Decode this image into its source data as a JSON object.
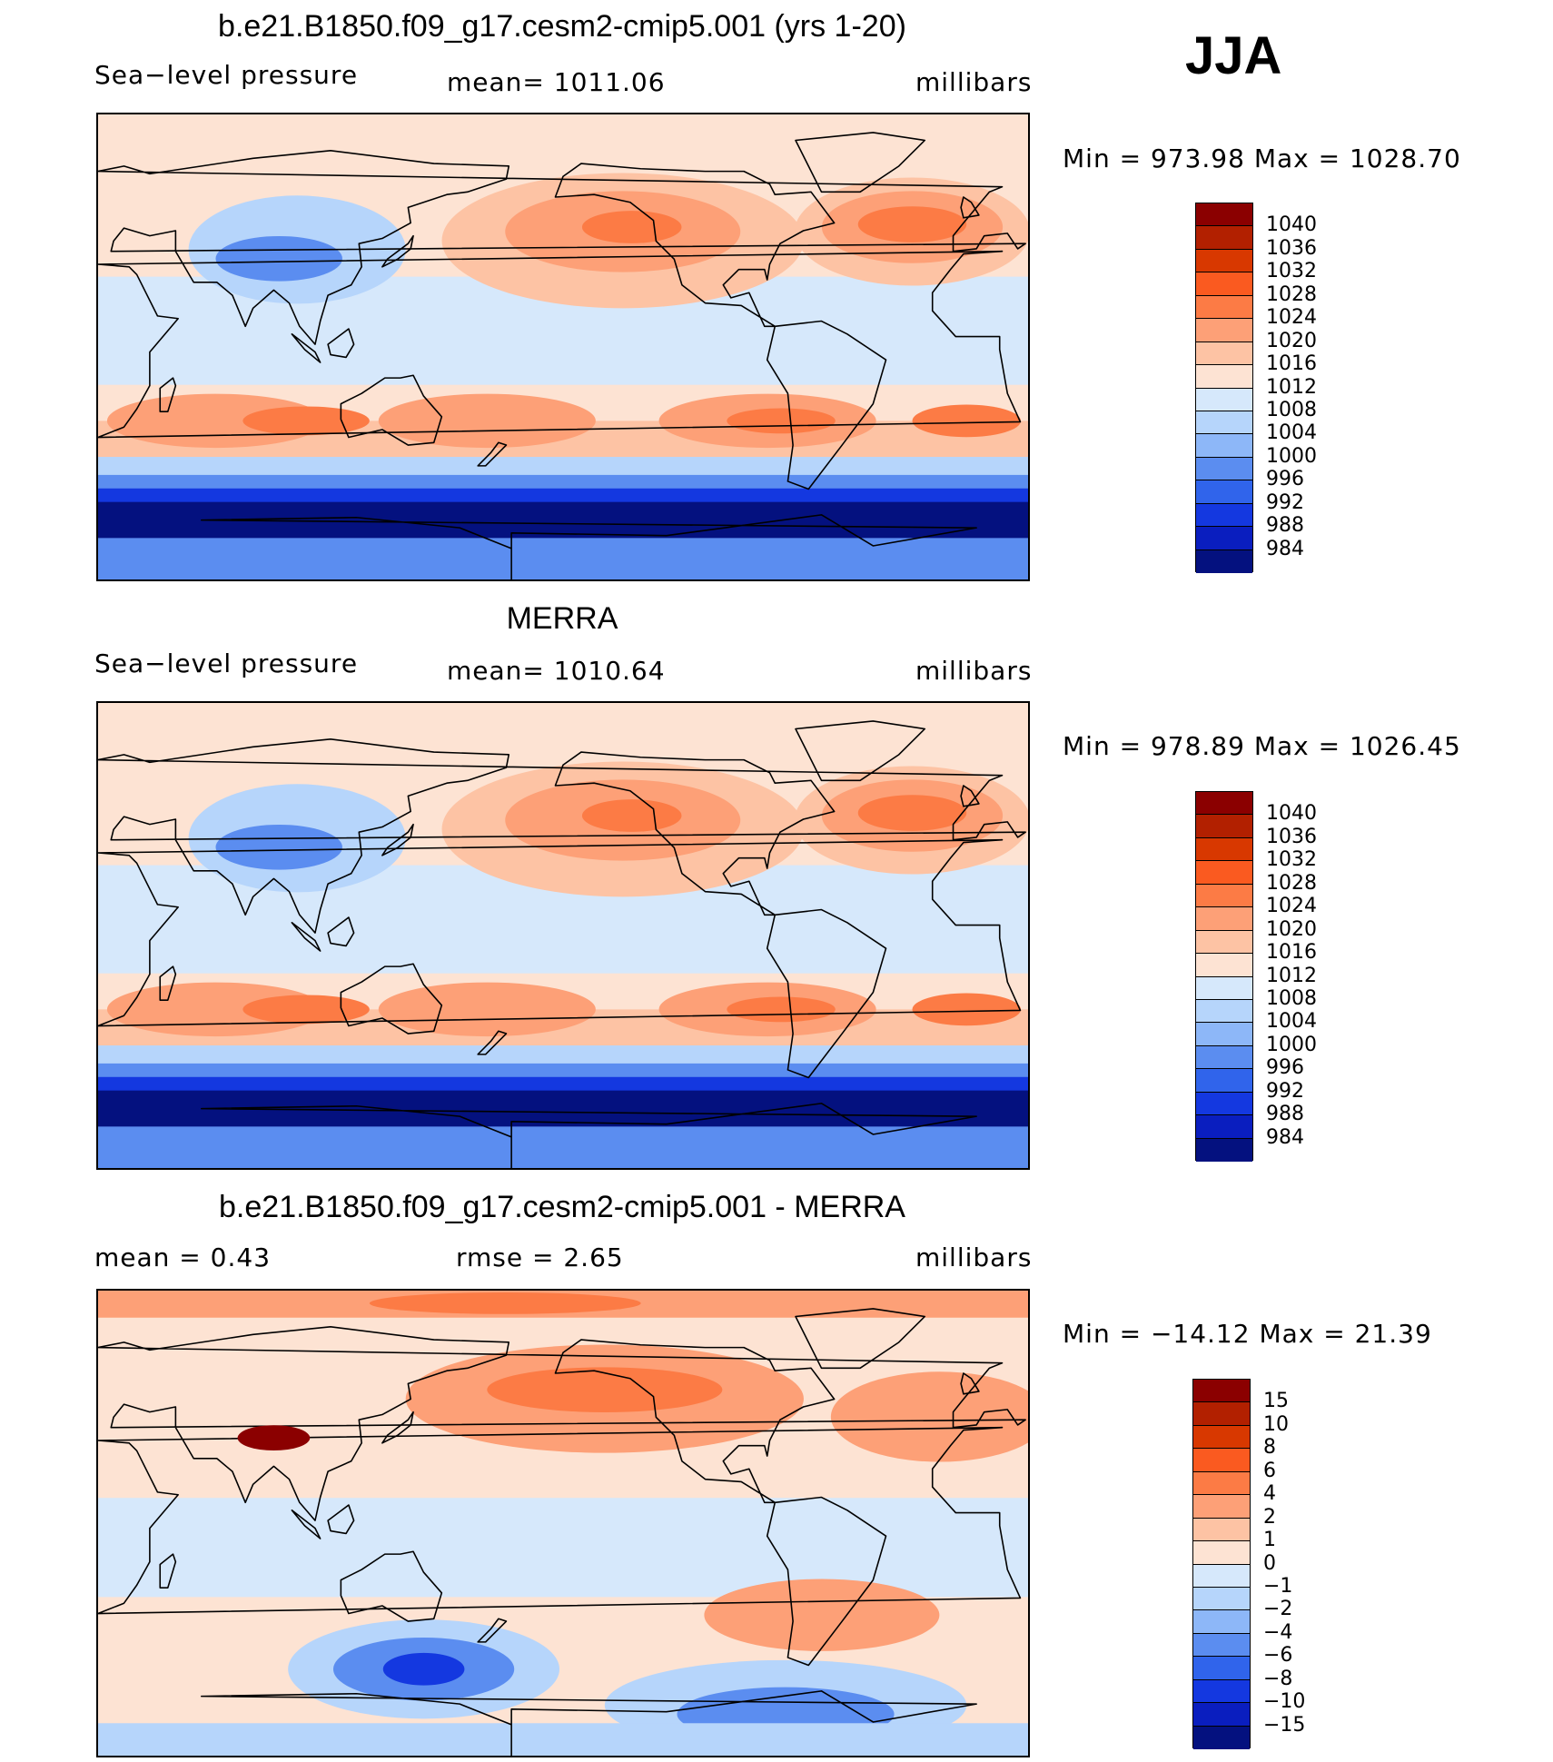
{
  "season": "JJA",
  "panels": [
    {
      "title": "b.e21.B1850.f09_g17.cesm2-cmip5.001 (yrs 1-20)",
      "left_label": "Sea−level pressure",
      "mid_label": "mean=  1011.06",
      "right_label": "millibars",
      "stats": "Min  =  973.98  Max  =  1028.70",
      "colorbar": {
        "labels": [
          "1040",
          "1036",
          "1032",
          "1028",
          "1024",
          "1020",
          "1016",
          "1012",
          "1008",
          "1004",
          "1000",
          "996",
          "992",
          "988",
          "984"
        ],
        "colors": [
          "#8b0000",
          "#b22000",
          "#d83800",
          "#fa5a20",
          "#fc7b45",
          "#fda077",
          "#fdc3a4",
          "#fde3d3",
          "#d6e8fb",
          "#b6d5fb",
          "#8db7f8",
          "#5b8df0",
          "#3064eb",
          "#1438e0",
          "#0a1ebf",
          "#04117f"
        ]
      },
      "map_colors": {
        "bg": "#fde3d3",
        "land": "#d6e8fb",
        "ocean_mid": "#fdc3a4",
        "high1": "#fda077",
        "high2": "#fc7b45",
        "high3": "#fa5a20",
        "low1": "#b6d5fb",
        "low2": "#5b8df0",
        "low3": "#1438e0",
        "low4": "#04117f"
      }
    },
    {
      "title": "MERRA",
      "left_label": "Sea−level pressure",
      "mid_label": "mean=  1010.64",
      "right_label": "millibars",
      "stats": "Min  =  978.89  Max  =  1026.45",
      "colorbar": {
        "labels": [
          "1040",
          "1036",
          "1032",
          "1028",
          "1024",
          "1020",
          "1016",
          "1012",
          "1008",
          "1004",
          "1000",
          "996",
          "992",
          "988",
          "984"
        ],
        "colors": [
          "#8b0000",
          "#b22000",
          "#d83800",
          "#fa5a20",
          "#fc7b45",
          "#fda077",
          "#fdc3a4",
          "#fde3d3",
          "#d6e8fb",
          "#b6d5fb",
          "#8db7f8",
          "#5b8df0",
          "#3064eb",
          "#1438e0",
          "#0a1ebf",
          "#04117f"
        ]
      },
      "map_colors": {
        "bg": "#fde3d3",
        "land": "#d6e8fb",
        "ocean_mid": "#fdc3a4",
        "high1": "#fda077",
        "high2": "#fc7b45",
        "high3": "#fa5a20",
        "low1": "#b6d5fb",
        "low2": "#5b8df0",
        "low3": "#1438e0",
        "low4": "#04117f"
      }
    },
    {
      "title": "b.e21.B1850.f09_g17.cesm2-cmip5.001 - MERRA",
      "left_label": "mean  =      0.43",
      "mid_label": "rmse  =      2.65",
      "right_label": "millibars",
      "stats": "Min  =  −14.12  Max  =    21.39",
      "colorbar": {
        "labels": [
          "15",
          "10",
          "8",
          "6",
          "4",
          "2",
          "1",
          "0",
          "−1",
          "−2",
          "−4",
          "−6",
          "−8",
          "−10",
          "−15"
        ],
        "colors": [
          "#8b0000",
          "#b22000",
          "#d83800",
          "#fa5a20",
          "#fc7b45",
          "#fda077",
          "#fdc3a4",
          "#fde3d3",
          "#d6e8fb",
          "#b6d5fb",
          "#8db7f8",
          "#5b8df0",
          "#3064eb",
          "#1438e0",
          "#0a1ebf",
          "#04117f"
        ]
      },
      "map_colors": {
        "bg": "#fde3d3",
        "land": "#fdc3a4",
        "ocean_mid": "#d6e8fb",
        "high1": "#fda077",
        "high2": "#fc7b45",
        "high3": "#8b0000",
        "low1": "#b6d5fb",
        "low2": "#5b8df0",
        "low3": "#1438e0",
        "low4": "#04117f"
      }
    }
  ]
}
